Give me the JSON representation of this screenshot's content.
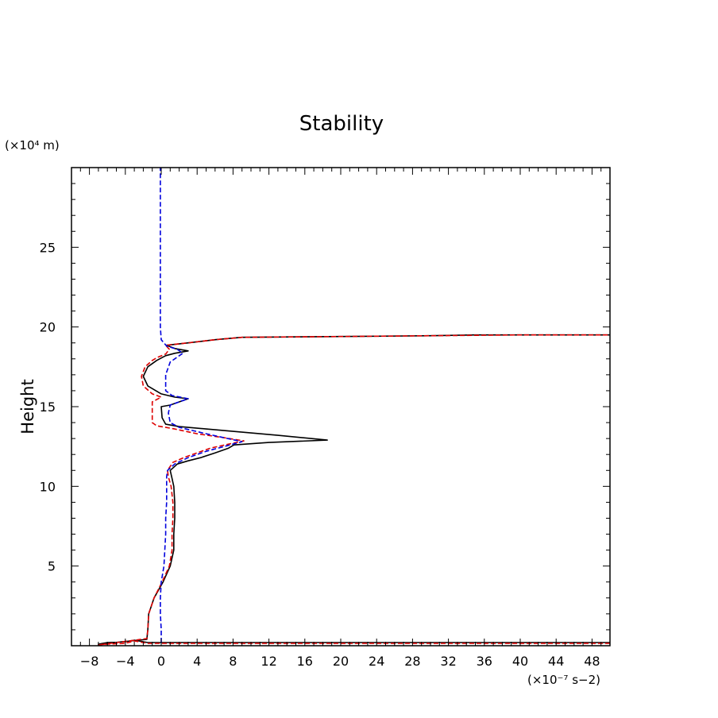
{
  "chart_data": {
    "type": "line",
    "title": "Stability",
    "xlabel": "",
    "ylabel": "Height",
    "x_unit_label": "(×10⁻⁷ s−2)",
    "y_unit_label": "(×10⁴ m)",
    "xlim": [
      -10,
      50
    ],
    "ylim": [
      0,
      30
    ],
    "grid": false,
    "legend": "none",
    "x_ticks": [
      -8,
      -4,
      0,
      4,
      8,
      12,
      16,
      20,
      24,
      28,
      32,
      36,
      40,
      44,
      48
    ],
    "x_tick_labels": [
      "−8",
      "−4",
      "0",
      "4",
      "8",
      "12",
      "16",
      "20",
      "24",
      "28",
      "32",
      "36",
      "40",
      "44",
      "48"
    ],
    "y_ticks": [
      5,
      10,
      15,
      20,
      25
    ],
    "y_tick_labels": [
      "5",
      "10",
      "15",
      "20",
      "25"
    ],
    "series": [
      {
        "color": "#000000",
        "dash": "solid",
        "points": [
          [
            50,
            0.2
          ],
          [
            -1.5,
            0.2
          ],
          [
            -3,
            0.35
          ],
          [
            -4,
            0.25
          ],
          [
            -6,
            0.2
          ],
          [
            -7,
            0.1
          ],
          [
            -1.6,
            0.4
          ],
          [
            -1.5,
            1
          ],
          [
            -1.4,
            2
          ],
          [
            -0.8,
            3
          ],
          [
            0.2,
            4
          ],
          [
            1,
            5
          ],
          [
            1.4,
            6
          ],
          [
            1.4,
            7
          ],
          [
            1.5,
            8
          ],
          [
            1.5,
            9
          ],
          [
            1.4,
            10
          ],
          [
            1.2,
            10.5
          ],
          [
            1,
            11
          ],
          [
            1.8,
            11.4
          ],
          [
            3,
            11.6
          ],
          [
            4.4,
            11.8
          ],
          [
            6,
            12.1
          ],
          [
            7.5,
            12.4
          ],
          [
            8.1,
            12.6
          ],
          [
            12,
            12.75
          ],
          [
            18.5,
            12.9
          ],
          [
            13,
            13.2
          ],
          [
            9,
            13.4
          ],
          [
            5,
            13.6
          ],
          [
            2,
            13.75
          ],
          [
            0.5,
            13.9
          ],
          [
            0.1,
            14.3
          ],
          [
            0,
            15
          ],
          [
            1,
            15.1
          ],
          [
            3,
            15.5
          ],
          [
            1.5,
            15.6
          ],
          [
            0,
            15.8
          ],
          [
            -1.5,
            16.3
          ],
          [
            -2,
            16.9
          ],
          [
            -1.5,
            17.5
          ],
          [
            -0.5,
            17.9
          ],
          [
            0.5,
            18.2
          ],
          [
            1.5,
            18.35
          ],
          [
            3,
            18.5
          ],
          [
            1.5,
            18.65
          ],
          [
            0.6,
            18.85
          ],
          [
            3,
            19
          ],
          [
            6,
            19.2
          ],
          [
            9,
            19.35
          ],
          [
            20,
            19.4
          ],
          [
            30,
            19.45
          ],
          [
            35,
            19.5
          ],
          [
            40,
            19.5
          ],
          [
            50,
            19.5
          ]
        ]
      },
      {
        "color": "#dd0000",
        "dash": "dashed",
        "points": [
          [
            50,
            0.15
          ],
          [
            -1.5,
            0.15
          ],
          [
            -3,
            0.3
          ],
          [
            -4,
            0.15
          ],
          [
            -6,
            0.1
          ],
          [
            -7,
            0.05
          ],
          [
            -1.6,
            0.45
          ],
          [
            -1.5,
            1
          ],
          [
            -1.4,
            2
          ],
          [
            -0.8,
            3
          ],
          [
            0.1,
            4
          ],
          [
            0.9,
            5
          ],
          [
            1.2,
            6
          ],
          [
            1.2,
            7
          ],
          [
            1.3,
            8
          ],
          [
            1.3,
            9
          ],
          [
            1.1,
            10
          ],
          [
            0.8,
            10.6
          ],
          [
            0.7,
            11
          ],
          [
            1.3,
            11.5
          ],
          [
            2.5,
            11.8
          ],
          [
            4,
            12.1
          ],
          [
            5.5,
            12.4
          ],
          [
            7.5,
            12.65
          ],
          [
            9.2,
            12.85
          ],
          [
            7,
            13.05
          ],
          [
            4,
            13.3
          ],
          [
            1.5,
            13.6
          ],
          [
            -0.5,
            13.8
          ],
          [
            -1,
            14
          ],
          [
            -1,
            14.8
          ],
          [
            -1,
            15.3
          ],
          [
            0,
            15.6
          ],
          [
            -1,
            15.8
          ],
          [
            -2,
            16.3
          ],
          [
            -2.2,
            16.9
          ],
          [
            -1.8,
            17.5
          ],
          [
            -1,
            17.9
          ],
          [
            -0.4,
            18.1
          ],
          [
            0.5,
            18.3
          ],
          [
            0.9,
            18.6
          ],
          [
            0.5,
            18.85
          ],
          [
            3,
            19
          ],
          [
            6,
            19.2
          ],
          [
            9,
            19.35
          ],
          [
            20,
            19.4
          ],
          [
            30,
            19.45
          ],
          [
            40,
            19.5
          ],
          [
            50,
            19.5
          ]
        ]
      },
      {
        "color": "#0000dd",
        "dash": "dashed",
        "points": [
          [
            0,
            0.2
          ],
          [
            0,
            1
          ],
          [
            -0.1,
            2
          ],
          [
            -0.1,
            3
          ],
          [
            0,
            4
          ],
          [
            0.3,
            5
          ],
          [
            0.4,
            6
          ],
          [
            0.5,
            7
          ],
          [
            0.5,
            8
          ],
          [
            0.6,
            9
          ],
          [
            0.6,
            10
          ],
          [
            0.6,
            10.6
          ],
          [
            0.7,
            11
          ],
          [
            1.5,
            11.4
          ],
          [
            3,
            11.8
          ],
          [
            5,
            12.2
          ],
          [
            7,
            12.5
          ],
          [
            9,
            12.8
          ],
          [
            5,
            13.3
          ],
          [
            2,
            13.7
          ],
          [
            1,
            14
          ],
          [
            0.8,
            14.6
          ],
          [
            1,
            15.1
          ],
          [
            3,
            15.5
          ],
          [
            1.2,
            15.7
          ],
          [
            0.5,
            16
          ],
          [
            0.5,
            17
          ],
          [
            1,
            17.8
          ],
          [
            2.4,
            18.35
          ],
          [
            1.8,
            18.6
          ],
          [
            0.6,
            18.8
          ],
          [
            0,
            19.2
          ],
          [
            -0.1,
            20
          ],
          [
            -0.1,
            22
          ],
          [
            -0.1,
            25
          ],
          [
            -0.1,
            28
          ],
          [
            -0.1,
            30
          ]
        ]
      }
    ]
  }
}
